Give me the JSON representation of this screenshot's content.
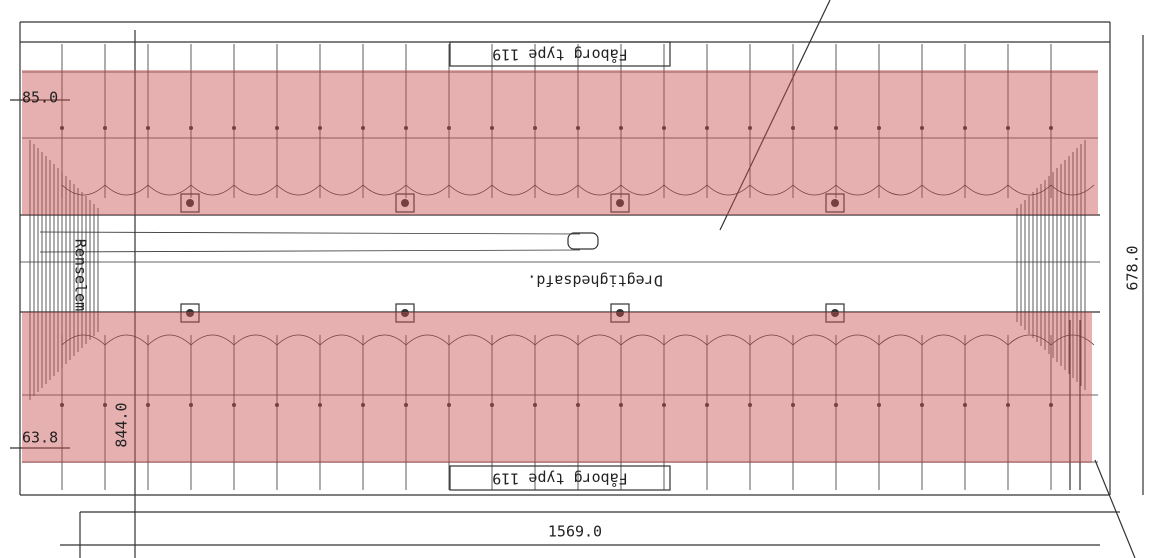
{
  "labels": {
    "top_label": "Fåborg type 119",
    "bottom_label": "Fåborg type 119",
    "aisle": "Dregtighedsafd.",
    "cleaning": "Renselem"
  },
  "dimensions": {
    "top_left": "85.0",
    "bottom_left": "63.8",
    "left_vertical": "844.0",
    "right_vertical": "678.0",
    "bottom_width": "1569.0"
  }
}
